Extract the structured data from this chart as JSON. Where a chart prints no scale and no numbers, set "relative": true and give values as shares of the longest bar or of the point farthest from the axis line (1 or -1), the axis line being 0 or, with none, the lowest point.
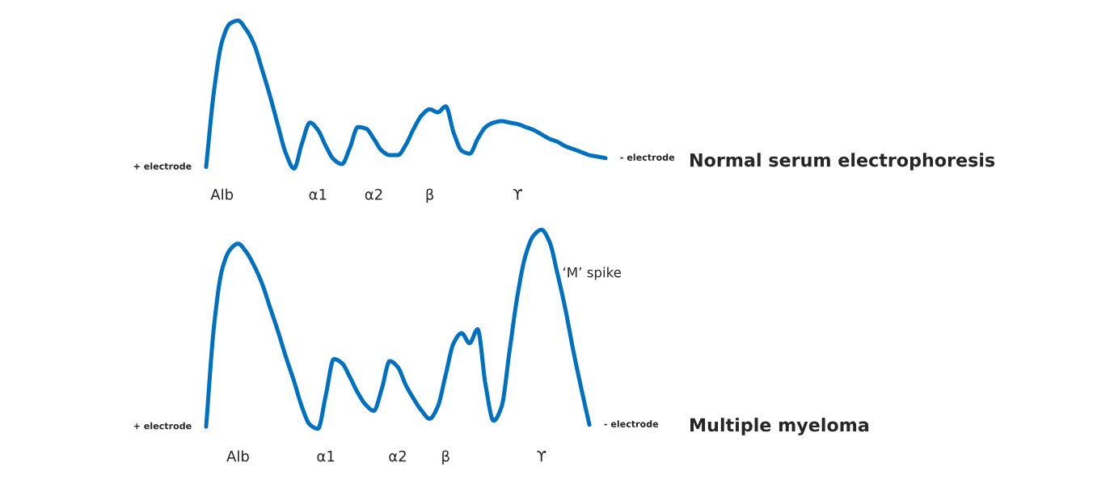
{
  "chart_data": [
    {
      "type": "line",
      "relative": true,
      "line_style": "solid",
      "categories": [
        null,
        null,
        "Alb",
        null,
        null,
        null,
        null,
        null,
        null,
        null,
        null,
        null,
        null,
        null,
        "α1",
        null,
        null,
        null,
        null,
        null,
        null,
        "α2",
        null,
        null,
        null,
        null,
        null,
        null,
        "β",
        null,
        null,
        null,
        null,
        null,
        null,
        null,
        null,
        null,
        null,
        "ϒ",
        null,
        null,
        null,
        null,
        null,
        null,
        null,
        null,
        null,
        null,
        null
      ],
      "series": [
        {
          "color": "#0070c0",
          "values": [
            0.01,
            0.53,
            0.86,
            0.98,
            1.0,
            0.94,
            0.84,
            0.67,
            0.49,
            0.29,
            0.1,
            0.0,
            0.17,
            0.31,
            0.26,
            0.15,
            0.06,
            0.03,
            0.14,
            0.28,
            0.27,
            0.2,
            0.12,
            0.09,
            0.09,
            0.16,
            0.27,
            0.36,
            0.4,
            0.38,
            0.42,
            0.24,
            0.12,
            0.1,
            0.2,
            0.28,
            0.31,
            0.32,
            0.31,
            0.3,
            0.28,
            0.26,
            0.23,
            0.2,
            0.18,
            0.15,
            0.13,
            0.11,
            0.09,
            0.08,
            0.07
          ]
        }
      ],
      "annotations": [
        "Normal serum electrophoresis",
        "+ electrode",
        "- electrode"
      ]
    },
    {
      "type": "line",
      "relative": true,
      "line_style": "solid",
      "categories": [
        null,
        null,
        null,
        null,
        "Alb",
        null,
        null,
        null,
        null,
        null,
        null,
        null,
        null,
        null,
        null,
        "α1",
        null,
        null,
        null,
        null,
        null,
        null,
        null,
        null,
        "α2",
        null,
        null,
        null,
        null,
        null,
        "β",
        null,
        null,
        null,
        null,
        null,
        null,
        null,
        null,
        null,
        null,
        null,
        "ϒ",
        null,
        null,
        null,
        null,
        null,
        null
      ],
      "series": [
        {
          "color": "#0070c0",
          "values": [
            0.01,
            0.52,
            0.8,
            0.9,
            0.93,
            0.89,
            0.82,
            0.73,
            0.61,
            0.49,
            0.36,
            0.24,
            0.11,
            0.02,
            0.0,
            0.17,
            0.35,
            0.33,
            0.26,
            0.18,
            0.12,
            0.09,
            0.2,
            0.34,
            0.31,
            0.22,
            0.15,
            0.09,
            0.05,
            0.11,
            0.27,
            0.43,
            0.48,
            0.43,
            0.5,
            0.22,
            0.04,
            0.11,
            0.39,
            0.67,
            0.87,
            0.97,
            1.0,
            0.94,
            0.78,
            0.6,
            0.39,
            0.2,
            0.02
          ]
        }
      ],
      "annotations": [
        "Multiple myeloma",
        "+ electrode",
        "- electrode",
        "‘M’ spike"
      ]
    }
  ]
}
